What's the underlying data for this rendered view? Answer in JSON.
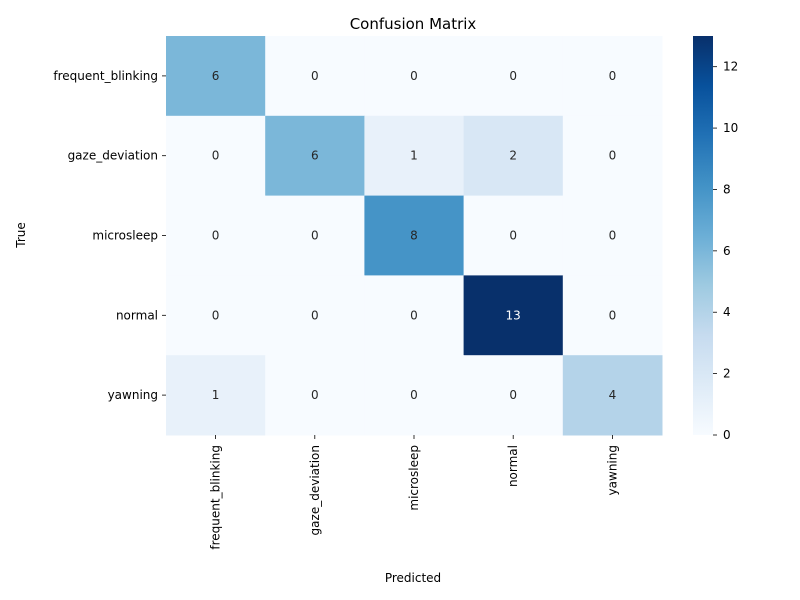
{
  "chart_data": {
    "type": "heatmap",
    "title": "Confusion Matrix",
    "xlabel": "Predicted",
    "ylabel": "True",
    "x_categories": [
      "frequent_blinking",
      "gaze_deviation",
      "microsleep",
      "normal",
      "yawning"
    ],
    "y_categories": [
      "frequent_blinking",
      "gaze_deviation",
      "microsleep",
      "normal",
      "yawning"
    ],
    "values": [
      [
        6,
        0,
        0,
        0,
        0
      ],
      [
        0,
        6,
        1,
        2,
        0
      ],
      [
        0,
        0,
        8,
        0,
        0
      ],
      [
        0,
        0,
        0,
        13,
        0
      ],
      [
        1,
        0,
        0,
        0,
        4
      ]
    ],
    "colorscale": "Blues",
    "vmin": 0,
    "vmax": 13,
    "colorbar_ticks": [
      0,
      2,
      4,
      6,
      8,
      10,
      12
    ]
  }
}
